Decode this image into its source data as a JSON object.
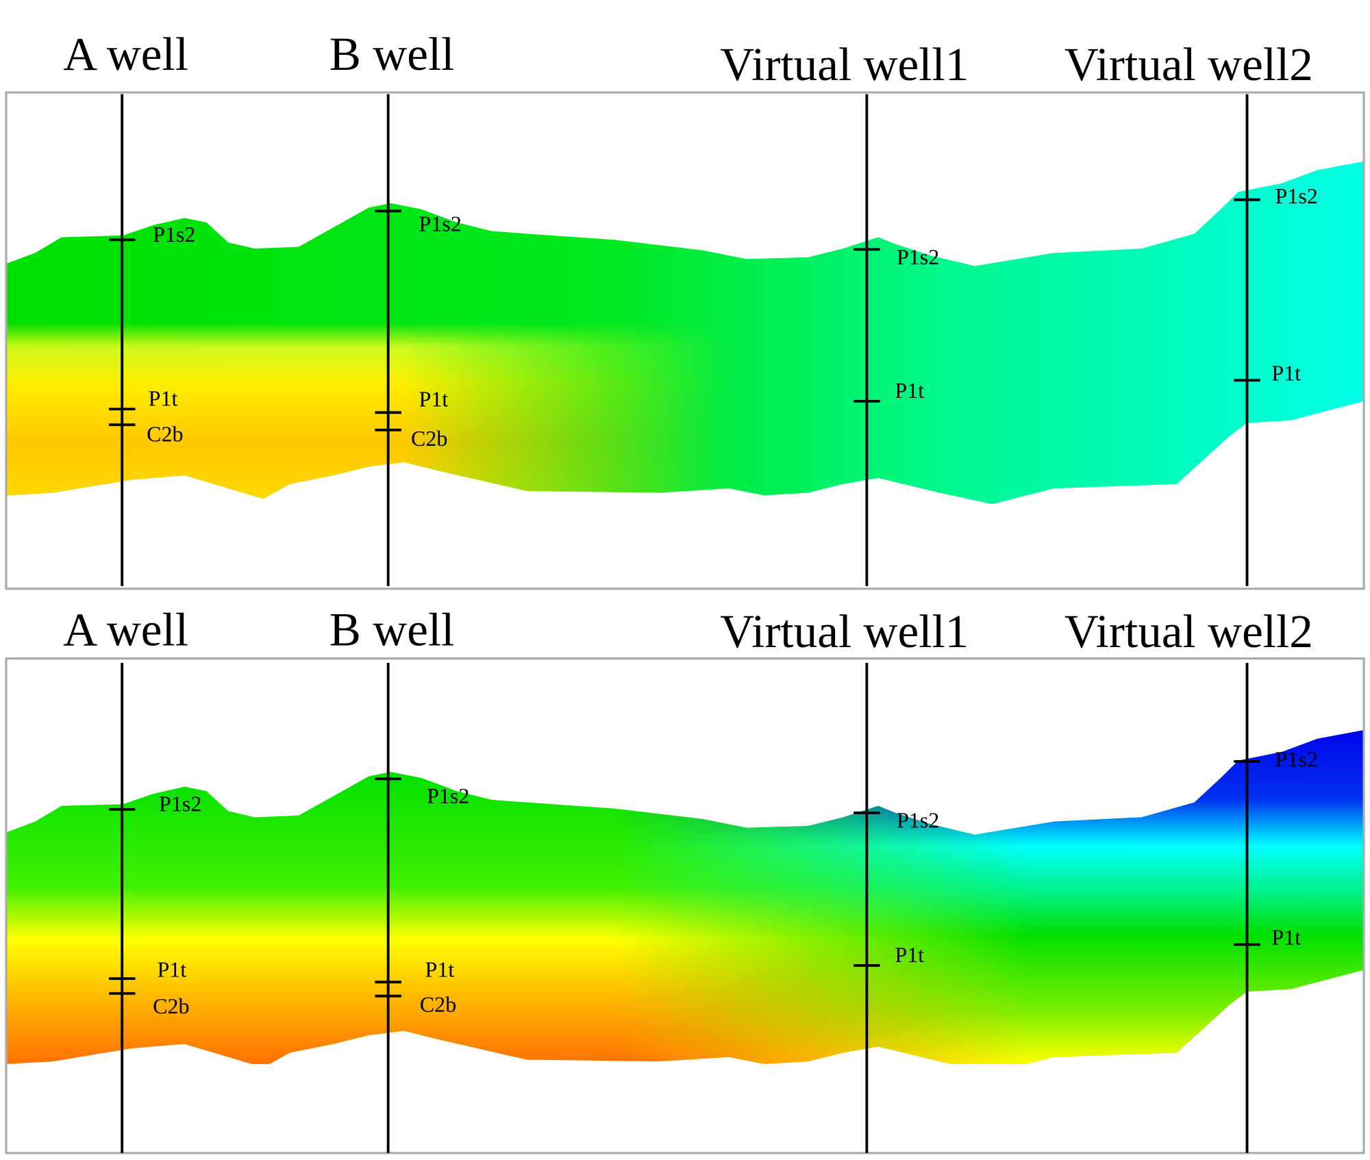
{
  "panels": [
    {
      "wells": [
        {
          "name": "A well",
          "markers": [
            "P1s2",
            "P1t",
            "C2b"
          ]
        },
        {
          "name": "B well",
          "markers": [
            "P1s2",
            "P1t",
            "C2b"
          ]
        },
        {
          "name": "Virtual well1",
          "markers": [
            "P1s2",
            "P1t"
          ]
        },
        {
          "name": "Virtual well2",
          "markers": [
            "P1s2",
            "P1t"
          ]
        }
      ]
    },
    {
      "wells": [
        {
          "name": "A well",
          "markers": [
            "P1s2",
            "P1t",
            "C2b"
          ]
        },
        {
          "name": "B well",
          "markers": [
            "P1s2",
            "P1t",
            "C2b"
          ]
        },
        {
          "name": "Virtual well1",
          "markers": [
            "P1s2",
            "P1t"
          ]
        },
        {
          "name": "Virtual well2",
          "markers": [
            "P1s2",
            "P1t"
          ]
        }
      ]
    }
  ],
  "colors": {
    "orange": "#ff9a00",
    "yellow": "#ffff00",
    "green": "#00e400",
    "cyan": "#00ffff",
    "blue": "#0000e0",
    "frame": "#aaaaaa"
  }
}
